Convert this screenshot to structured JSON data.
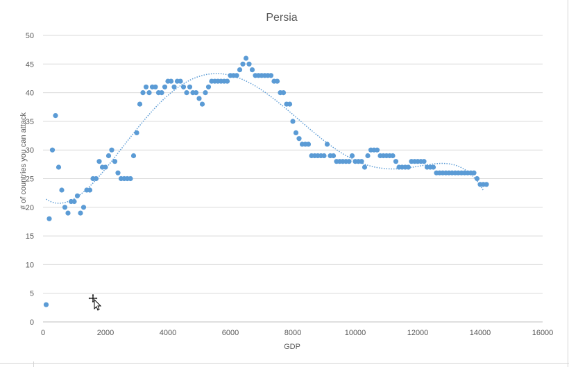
{
  "chart_data": {
    "type": "scatter",
    "title": "Persia",
    "xlabel": "GDP",
    "ylabel": "# of countries you can attack",
    "xlim": [
      0,
      16000
    ],
    "ylim": [
      0,
      50
    ],
    "x_ticks": [
      "0",
      "2000",
      "4000",
      "6000",
      "8000",
      "10000",
      "12000",
      "14000",
      "16000"
    ],
    "y_ticks": [
      "0",
      "5",
      "10",
      "15",
      "20",
      "25",
      "30",
      "35",
      "40",
      "45",
      "50"
    ],
    "grid": true,
    "legend": "none",
    "marker_color": "#5b9bd5",
    "trendline": {
      "type": "polynomial",
      "style": "dotted",
      "color": "#5b9bd5",
      "x_start": 100,
      "x_end": 14100
    },
    "points": [
      [
        100,
        3
      ],
      [
        200,
        18
      ],
      [
        300,
        30
      ],
      [
        400,
        36
      ],
      [
        500,
        27
      ],
      [
        600,
        23
      ],
      [
        700,
        20
      ],
      [
        800,
        19
      ],
      [
        900,
        21
      ],
      [
        1000,
        21
      ],
      [
        1100,
        22
      ],
      [
        1200,
        19
      ],
      [
        1300,
        20
      ],
      [
        1400,
        23
      ],
      [
        1500,
        23
      ],
      [
        1600,
        25
      ],
      [
        1700,
        25
      ],
      [
        1800,
        28
      ],
      [
        1900,
        27
      ],
      [
        2000,
        27
      ],
      [
        2100,
        29
      ],
      [
        2200,
        30
      ],
      [
        2300,
        28
      ],
      [
        2400,
        26
      ],
      [
        2500,
        25
      ],
      [
        2600,
        25
      ],
      [
        2700,
        25
      ],
      [
        2800,
        25
      ],
      [
        2900,
        29
      ],
      [
        3000,
        33
      ],
      [
        3100,
        38
      ],
      [
        3200,
        40
      ],
      [
        3300,
        41
      ],
      [
        3400,
        40
      ],
      [
        3500,
        41
      ],
      [
        3600,
        41
      ],
      [
        3700,
        40
      ],
      [
        3800,
        40
      ],
      [
        3900,
        41
      ],
      [
        4000,
        42
      ],
      [
        4100,
        42
      ],
      [
        4200,
        41
      ],
      [
        4300,
        42
      ],
      [
        4400,
        42
      ],
      [
        4500,
        41
      ],
      [
        4600,
        40
      ],
      [
        4700,
        41
      ],
      [
        4800,
        40
      ],
      [
        4900,
        40
      ],
      [
        5000,
        39
      ],
      [
        5100,
        38
      ],
      [
        5200,
        40
      ],
      [
        5300,
        41
      ],
      [
        5400,
        42
      ],
      [
        5500,
        42
      ],
      [
        5600,
        42
      ],
      [
        5700,
        42
      ],
      [
        5800,
        42
      ],
      [
        5900,
        42
      ],
      [
        6000,
        43
      ],
      [
        6100,
        43
      ],
      [
        6200,
        43
      ],
      [
        6300,
        44
      ],
      [
        6400,
        45
      ],
      [
        6500,
        46
      ],
      [
        6600,
        45
      ],
      [
        6700,
        44
      ],
      [
        6800,
        43
      ],
      [
        6900,
        43
      ],
      [
        7000,
        43
      ],
      [
        7100,
        43
      ],
      [
        7200,
        43
      ],
      [
        7300,
        43
      ],
      [
        7400,
        42
      ],
      [
        7500,
        42
      ],
      [
        7600,
        40
      ],
      [
        7700,
        40
      ],
      [
        7800,
        38
      ],
      [
        7900,
        38
      ],
      [
        8000,
        35
      ],
      [
        8100,
        33
      ],
      [
        8200,
        32
      ],
      [
        8300,
        31
      ],
      [
        8400,
        31
      ],
      [
        8500,
        31
      ],
      [
        8600,
        29
      ],
      [
        8700,
        29
      ],
      [
        8800,
        29
      ],
      [
        8900,
        29
      ],
      [
        9000,
        29
      ],
      [
        9100,
        31
      ],
      [
        9200,
        29
      ],
      [
        9300,
        29
      ],
      [
        9400,
        28
      ],
      [
        9500,
        28
      ],
      [
        9600,
        28
      ],
      [
        9700,
        28
      ],
      [
        9800,
        28
      ],
      [
        9900,
        29
      ],
      [
        10000,
        28
      ],
      [
        10100,
        28
      ],
      [
        10200,
        28
      ],
      [
        10300,
        27
      ],
      [
        10400,
        29
      ],
      [
        10500,
        30
      ],
      [
        10600,
        30
      ],
      [
        10700,
        30
      ],
      [
        10800,
        29
      ],
      [
        10900,
        29
      ],
      [
        11000,
        29
      ],
      [
        11100,
        29
      ],
      [
        11200,
        29
      ],
      [
        11300,
        28
      ],
      [
        11400,
        27
      ],
      [
        11500,
        27
      ],
      [
        11600,
        27
      ],
      [
        11700,
        27
      ],
      [
        11800,
        28
      ],
      [
        11900,
        28
      ],
      [
        12000,
        28
      ],
      [
        12100,
        28
      ],
      [
        12200,
        28
      ],
      [
        12300,
        27
      ],
      [
        12400,
        27
      ],
      [
        12500,
        27
      ],
      [
        12600,
        26
      ],
      [
        12700,
        26
      ],
      [
        12800,
        26
      ],
      [
        12900,
        26
      ],
      [
        13000,
        26
      ],
      [
        13100,
        26
      ],
      [
        13200,
        26
      ],
      [
        13300,
        26
      ],
      [
        13400,
        26
      ],
      [
        13500,
        26
      ],
      [
        13600,
        26
      ],
      [
        13700,
        26
      ],
      [
        13800,
        26
      ],
      [
        13900,
        25
      ],
      [
        14000,
        24
      ],
      [
        14100,
        24
      ],
      [
        14200,
        24
      ]
    ]
  }
}
